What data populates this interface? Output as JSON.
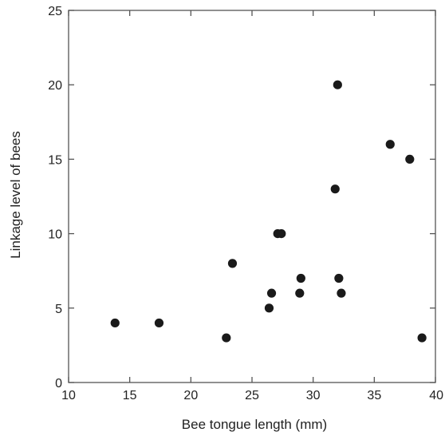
{
  "chart_data": {
    "type": "scatter",
    "title": "",
    "xlabel": "Bee tongue length (mm)",
    "ylabel": "Linkage level of bees",
    "xlim": [
      10,
      40
    ],
    "ylim": [
      0,
      25
    ],
    "xticks": [
      10,
      15,
      20,
      25,
      30,
      35,
      40
    ],
    "yticks": [
      0,
      5,
      10,
      15,
      20,
      25
    ],
    "grid": false,
    "legend": "none",
    "marker_color": "#1a1a1a",
    "axis_color": "#555555",
    "series": [
      {
        "points": [
          {
            "x": 13.8,
            "y": 4
          },
          {
            "x": 17.4,
            "y": 4
          },
          {
            "x": 22.9,
            "y": 3
          },
          {
            "x": 23.4,
            "y": 8
          },
          {
            "x": 26.4,
            "y": 5
          },
          {
            "x": 26.6,
            "y": 6
          },
          {
            "x": 27.1,
            "y": 10
          },
          {
            "x": 27.4,
            "y": 10
          },
          {
            "x": 28.9,
            "y": 6
          },
          {
            "x": 29.0,
            "y": 7
          },
          {
            "x": 31.8,
            "y": 13
          },
          {
            "x": 32.0,
            "y": 20
          },
          {
            "x": 32.1,
            "y": 7
          },
          {
            "x": 32.3,
            "y": 6
          },
          {
            "x": 36.3,
            "y": 16
          },
          {
            "x": 37.9,
            "y": 15
          },
          {
            "x": 38.9,
            "y": 3
          }
        ]
      }
    ]
  }
}
